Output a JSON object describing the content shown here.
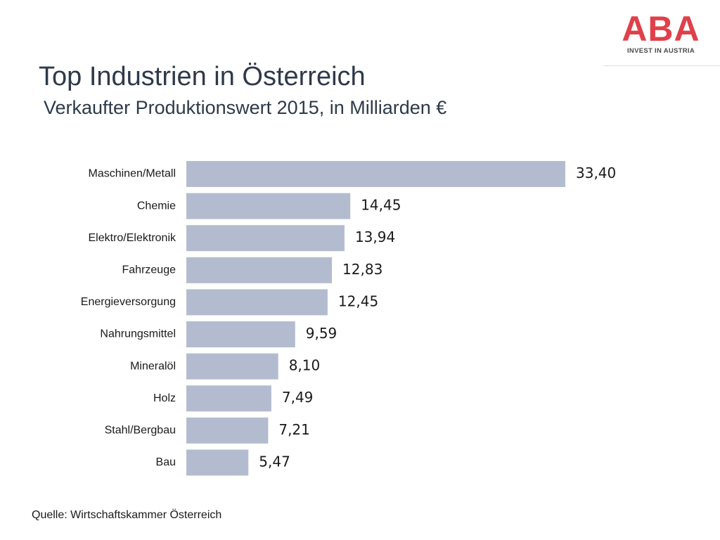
{
  "logo": {
    "mark": "ABA",
    "tagline": "INVEST IN AUSTRIA",
    "brand_color": "#e0404a"
  },
  "colors": {
    "bar": "#b3bccf",
    "title_text": "#2e3a4a"
  },
  "source": "Quelle: Wirtschaftskammer Österreich",
  "chart_data": {
    "type": "bar",
    "orientation": "horizontal",
    "title": "Top Industrien in Österreich",
    "subtitle": "Verkaufter Produktionswert 2015, in Milliarden €",
    "categories": [
      "Maschinen/Metall",
      "Chemie",
      "Elektro/Elektronik",
      "Fahrzeuge",
      "Energieversorgung",
      "Nahrungsmittel",
      "Mineralöl",
      "Holz",
      "Stahl/Bergbau",
      "Bau"
    ],
    "values": [
      33.4,
      14.45,
      13.94,
      12.83,
      12.45,
      9.59,
      8.1,
      7.49,
      7.21,
      5.47
    ],
    "value_labels": [
      "33,40",
      "14,45",
      "13,94",
      "12,83",
      "12,45",
      "9,59",
      "8,10",
      "7,49",
      "7,21",
      "5,47"
    ],
    "xlabel": "",
    "ylabel": "",
    "grid": false,
    "legend": "none"
  }
}
